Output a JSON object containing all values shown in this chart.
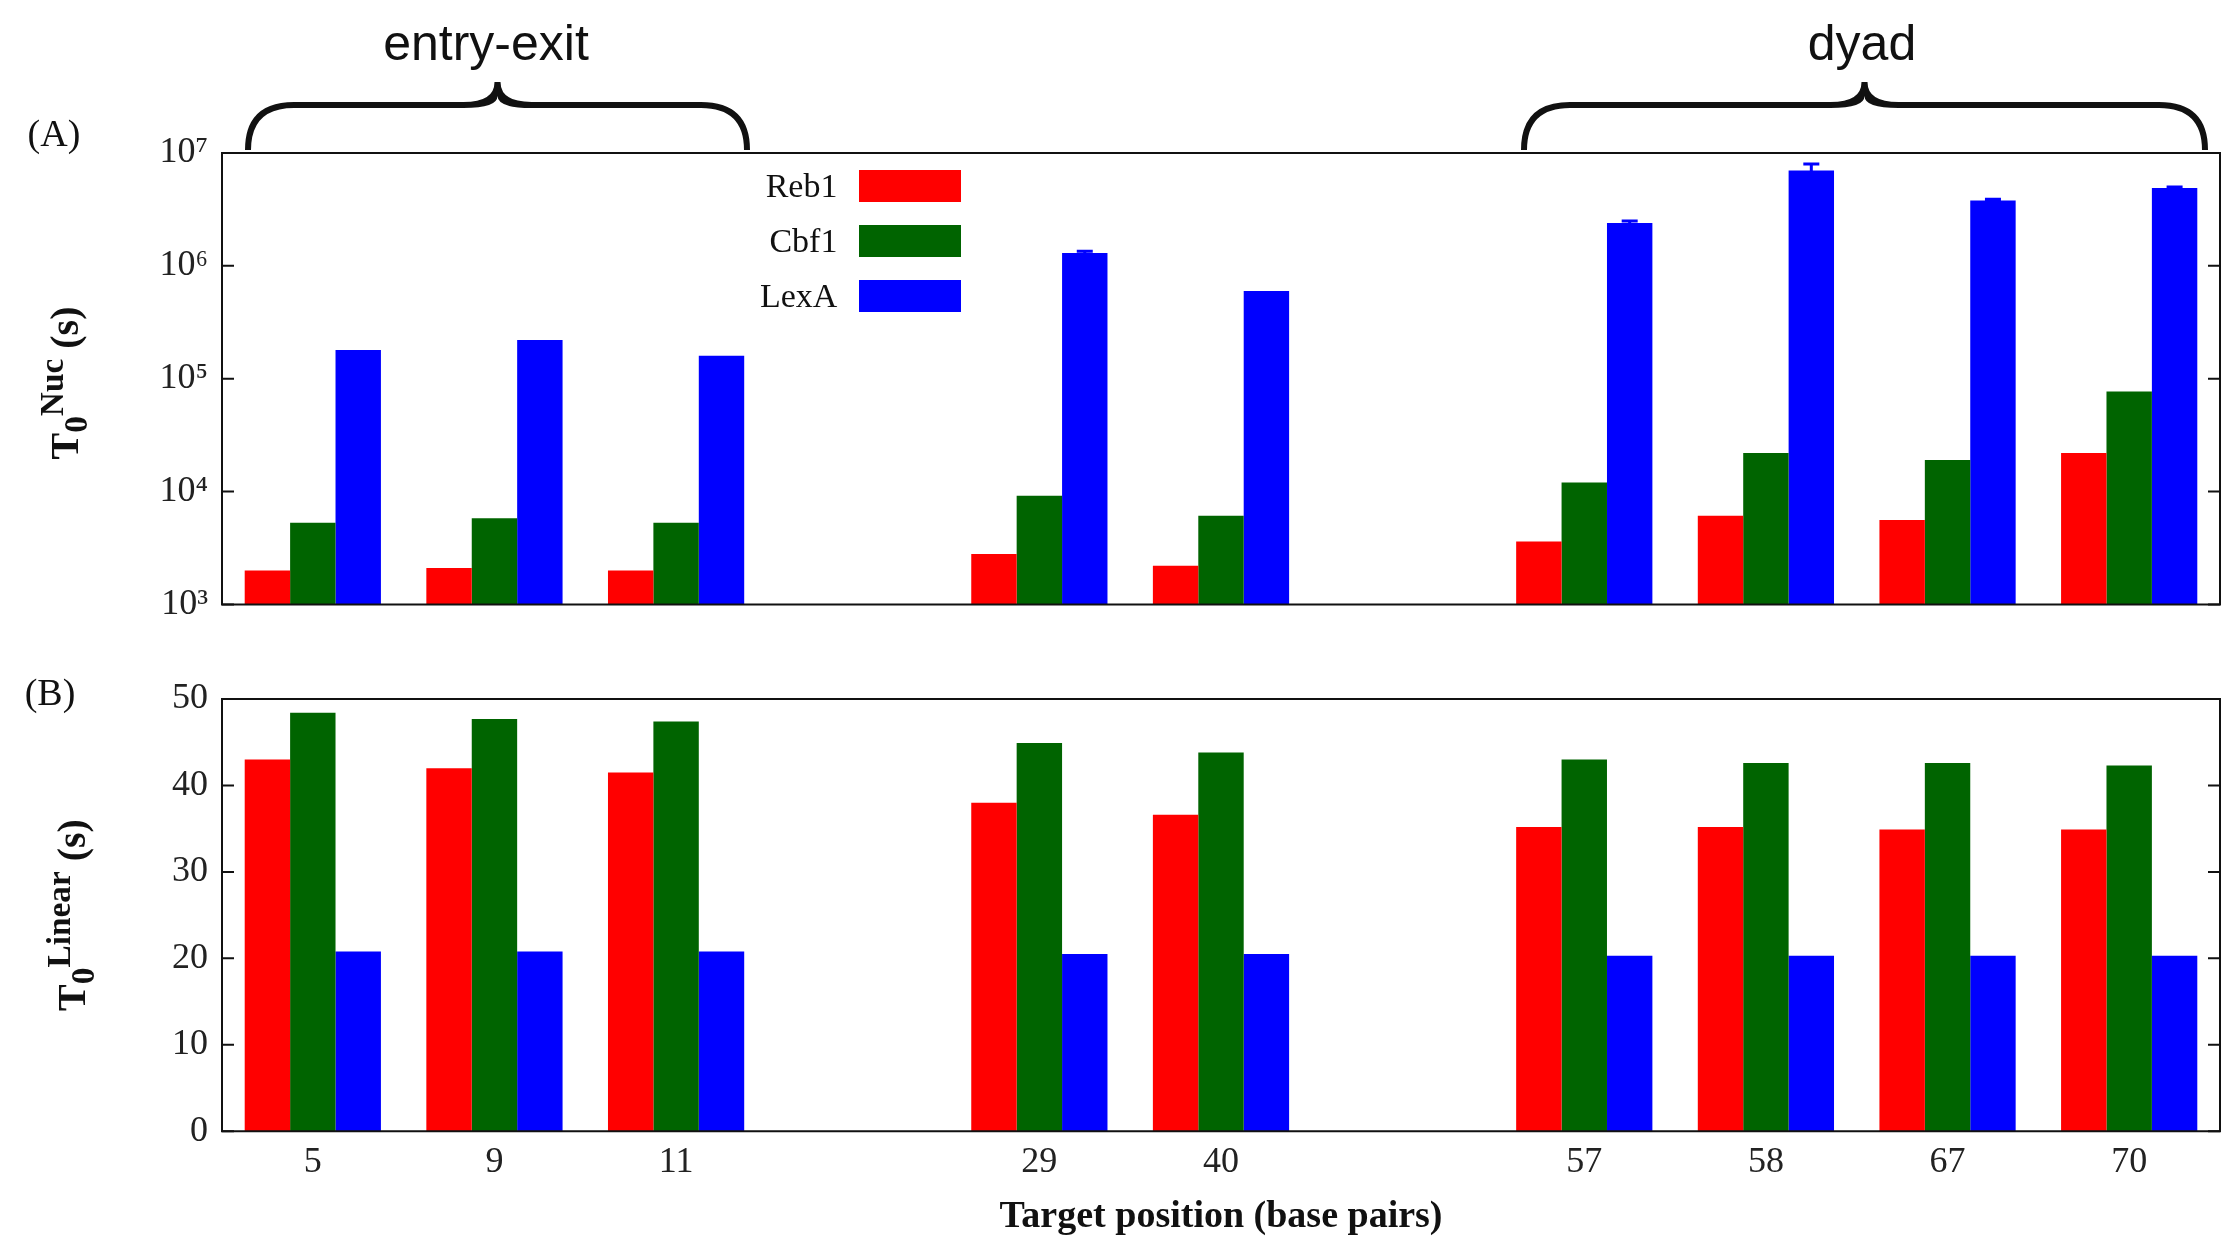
{
  "chart_data": [
    {
      "type": "bar",
      "ylabel": "T$_{0}$$^{Nuc}$ (s)",
      "log": "y",
      "legend": "top",
      "tick_labels": "y",
      "grid": false,
      "categories": [
        "5",
        "9",
        "11",
        null,
        "29",
        "40",
        null,
        "57",
        "58",
        "67",
        "70"
      ],
      "ylim": [
        1000,
        10000000
      ],
      "yticks": [
        {
          "value": 1000,
          "label": "10³"
        },
        {
          "value": 10000,
          "label": "10⁴"
        },
        {
          "value": 100000,
          "label": "10⁵"
        },
        {
          "value": 1000000,
          "label": "10⁶"
        },
        {
          "value": 10000000,
          "label": "10⁷"
        }
      ],
      "series": [
        {
          "name": "Reb1",
          "color": "#ff0000",
          "values": [
            2000,
            2100,
            2000,
            null,
            2800,
            2200,
            null,
            3600,
            6100,
            5600,
            22000
          ]
        },
        {
          "name": "Cbf1",
          "color": "#006400",
          "values": [
            5300,
            5800,
            5300,
            null,
            9200,
            6100,
            null,
            12000,
            22000,
            19000,
            77000
          ]
        },
        {
          "name": "LexA",
          "color": "#0000ff",
          "values": [
            180000,
            220000,
            160000,
            null,
            1300000,
            600000,
            null,
            2400000,
            7000000,
            3800000,
            4900000
          ],
          "errors": [
            null,
            null,
            null,
            null,
            50000,
            null,
            null,
            100000,
            1000000,
            100000,
            100000
          ]
        }
      ],
      "annotations": [
        "(A)",
        "entry-exit",
        "dyad"
      ]
    },
    {
      "type": "bar",
      "ylabel": "T$_{0}$$^{Linear}$ (s)",
      "xlabel": "Target position (base pairs)",
      "grid": false,
      "categories": [
        "5",
        "9",
        "11",
        null,
        "29",
        "40",
        null,
        "57",
        "58",
        "67",
        "70"
      ],
      "ylim": [
        0,
        50
      ],
      "yticks": [
        0,
        10,
        20,
        30,
        40,
        50
      ],
      "series": [
        {
          "color": "#ff0000",
          "values": [
            43,
            42,
            41.5,
            null,
            38,
            36.6,
            null,
            35.2,
            35.2,
            34.9,
            34.9
          ]
        },
        {
          "color": "#006400",
          "values": [
            48.4,
            47.7,
            47.4,
            null,
            44.9,
            43.8,
            null,
            43,
            42.6,
            42.6,
            42.3
          ]
        },
        {
          "color": "#0000ff",
          "values": [
            20.8,
            20.8,
            20.8,
            null,
            20.5,
            20.5,
            null,
            20.3,
            20.3,
            20.3,
            20.3
          ]
        }
      ],
      "annotations": [
        "(B)"
      ]
    }
  ]
}
